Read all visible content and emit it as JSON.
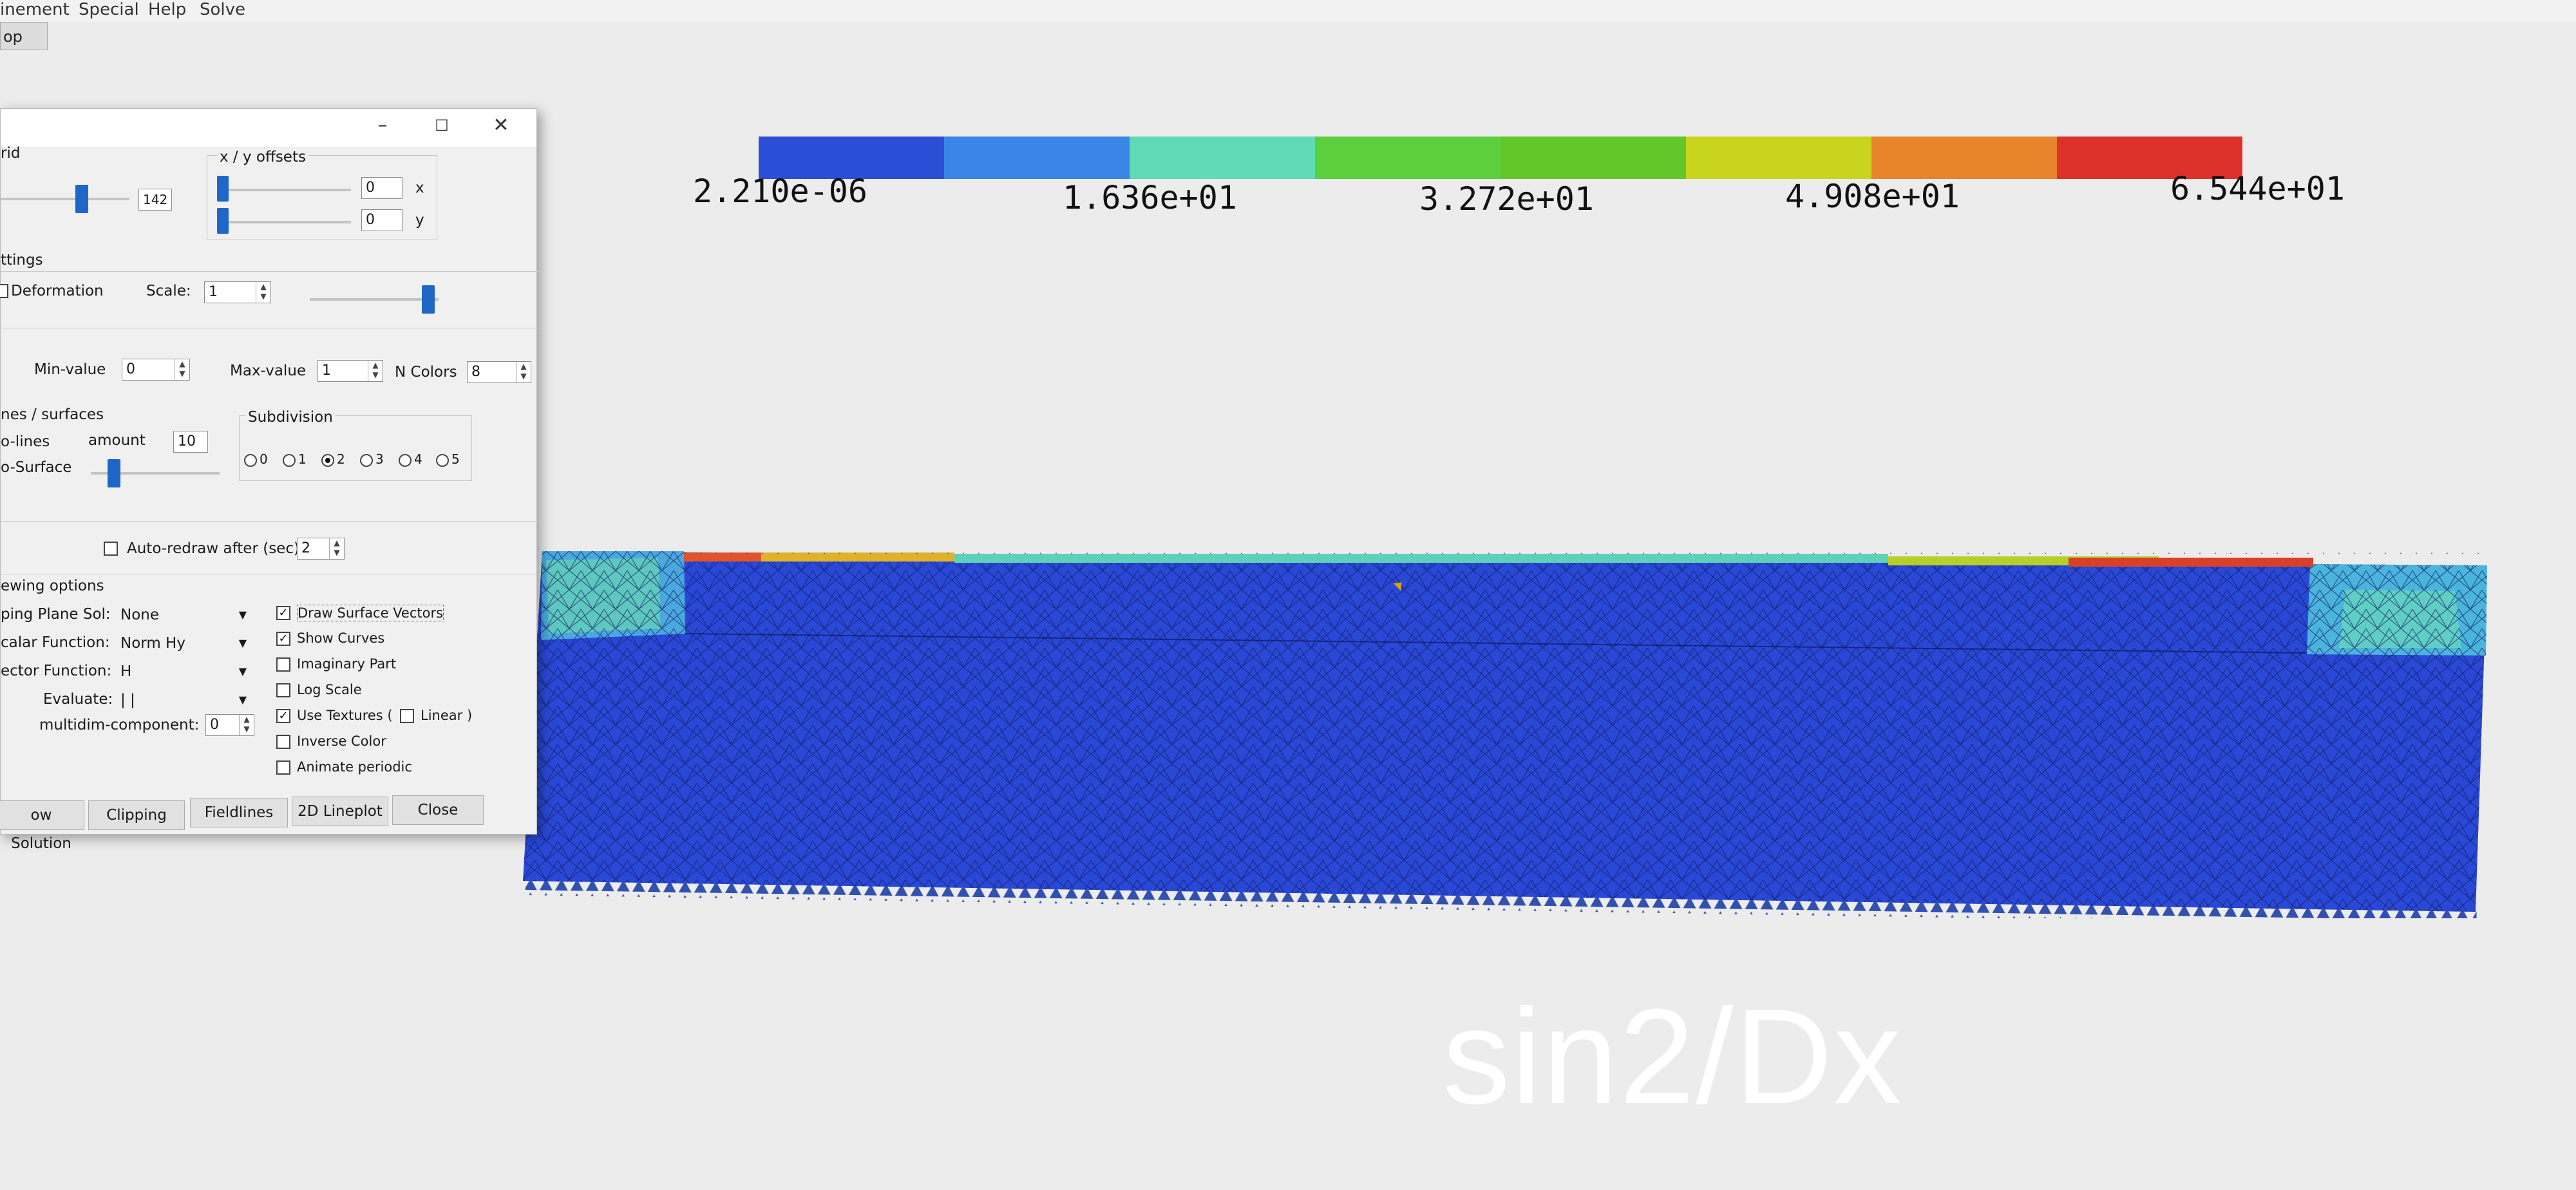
{
  "menu": [
    "inement",
    "Special",
    "Help",
    "Solve"
  ],
  "toolbar": {
    "button_label": "op"
  },
  "colorbar": {
    "colors": [
      "#2a4fd6",
      "#3a86e6",
      "#5fd9b6",
      "#5ccf3f",
      "#62c82a",
      "#c9d41e",
      "#e8842c",
      "#dc3229"
    ],
    "labels": [
      "2.210e-06",
      "1.636e+01",
      "3.272e+01",
      "4.908e+01",
      "6.544e+01"
    ]
  },
  "watermark": "sin2/Dx",
  "dialog": {
    "title_controls": {
      "minimize": "–",
      "maximize": "☐",
      "close": "✕"
    },
    "grid": {
      "label": "rid",
      "value": "142"
    },
    "offsets": {
      "label": "x / y offsets",
      "x_value": "0",
      "x_label": "x",
      "y_value": "0",
      "y_label": "y"
    },
    "settings": {
      "label": "ttings",
      "deformation_label": "Deformation",
      "scale_label": "Scale:",
      "scale_value": "1"
    },
    "range": {
      "min_label": "Min-value",
      "min_value": "0",
      "max_label": "Max-value",
      "max_value": "1",
      "ncolors_label": "N Colors",
      "ncolors_value": "8"
    },
    "surfaces": {
      "label": "nes / surfaces",
      "isolines_label": "o-lines",
      "amount_label": "amount",
      "amount_value": "10",
      "isosurface_label": "o-Surface"
    },
    "subdivision": {
      "label": "Subdivision",
      "options": [
        "0",
        "1",
        "2",
        "3",
        "4",
        "5"
      ],
      "selected": "2"
    },
    "autoredraw": {
      "label": "Auto-redraw after (sec)",
      "value": "2"
    },
    "viewing": {
      "label": "ewing options",
      "clipping_label": "ping Plane Sol:",
      "clipping_value": "None",
      "scalar_label": "calar Function:",
      "scalar_value": "Norm Hy",
      "vector_label": "ector Function:",
      "vector_value": "H",
      "evaluate_label": "Evaluate:",
      "evaluate_value": "| |",
      "multidim_label": "multidim-component:",
      "multidim_value": "0"
    },
    "checks": {
      "draw_surface_vectors": "Draw Surface Vectors",
      "show_curves": "Show Curves",
      "imaginary_part": "Imaginary Part",
      "log_scale": "Log Scale",
      "use_textures": "Use Textures (",
      "linear": "Linear )",
      "inverse_color": "Inverse Color",
      "animate_periodic": "Animate periodic"
    },
    "buttons": {
      "show_solution": "ow Solution",
      "clipping": "Clipping",
      "fieldlines": "Fieldlines",
      "lineplot": "2D Lineplot",
      "close": "Close"
    }
  }
}
